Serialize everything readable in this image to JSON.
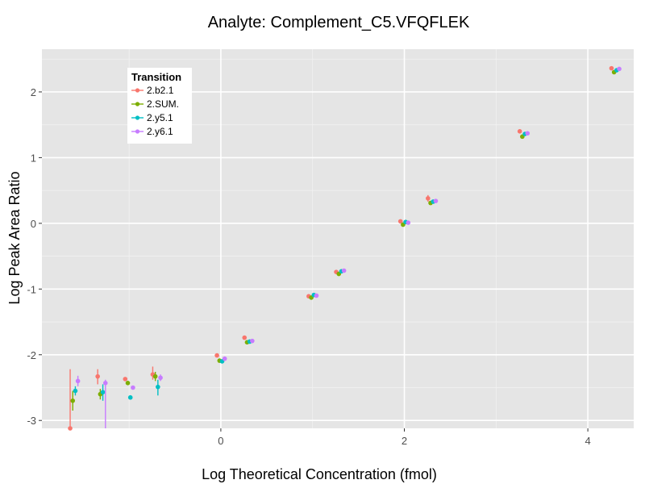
{
  "chart_data": {
    "type": "scatter",
    "title": "Analyte: Complement_C5.VFQFLEK",
    "xlabel": "Log Theoretical Concentration (fmol)",
    "ylabel": "Log Peak Area Ratio",
    "xlim": [
      -1.95,
      4.5
    ],
    "ylim": [
      -3.12,
      2.65
    ],
    "x_ticks": [
      0,
      2,
      4
    ],
    "y_ticks": [
      -3,
      -2,
      -1,
      0,
      1,
      2
    ],
    "grid": true,
    "legend": {
      "title": "Transition",
      "position": "top-left"
    },
    "series": [
      {
        "name": "2.b2.1",
        "color": "#F8766D",
        "points": [
          {
            "x": -1.6,
            "y": -3.12,
            "lo": -3.12,
            "hi": -2.22
          },
          {
            "x": -1.3,
            "y": -2.33,
            "lo": -2.45,
            "hi": -2.22
          },
          {
            "x": -1.0,
            "y": -2.37
          },
          {
            "x": -0.7,
            "y": -2.3,
            "lo": -2.38,
            "hi": -2.18
          },
          {
            "x": 0.0,
            "y": -2.01
          },
          {
            "x": 0.3,
            "y": -1.74
          },
          {
            "x": 1.0,
            "y": -1.11
          },
          {
            "x": 1.3,
            "y": -0.74
          },
          {
            "x": 2.0,
            "y": 0.03
          },
          {
            "x": 2.3,
            "y": 0.38,
            "lo": 0.33,
            "hi": 0.43
          },
          {
            "x": 3.3,
            "y": 1.4
          },
          {
            "x": 4.3,
            "y": 2.36
          }
        ]
      },
      {
        "name": "2.SUM.",
        "color": "#7CAE00",
        "points": [
          {
            "x": -1.6,
            "y": -2.7,
            "lo": -2.85,
            "hi": -2.55
          },
          {
            "x": -1.3,
            "y": -2.6,
            "lo": -2.68,
            "hi": -2.52
          },
          {
            "x": -1.0,
            "y": -2.43
          },
          {
            "x": -0.7,
            "y": -2.33,
            "lo": -2.4,
            "hi": -2.26
          },
          {
            "x": 0.0,
            "y": -2.09
          },
          {
            "x": 0.3,
            "y": -1.81
          },
          {
            "x": 1.0,
            "y": -1.13
          },
          {
            "x": 1.3,
            "y": -0.77
          },
          {
            "x": 2.0,
            "y": -0.02
          },
          {
            "x": 2.3,
            "y": 0.31
          },
          {
            "x": 3.3,
            "y": 1.32
          },
          {
            "x": 4.3,
            "y": 2.3
          }
        ]
      },
      {
        "name": "2.y5.1",
        "color": "#00BFC4",
        "points": [
          {
            "x": -1.6,
            "y": -2.55,
            "lo": -2.62,
            "hi": -2.48
          },
          {
            "x": -1.3,
            "y": -2.57,
            "lo": -2.7,
            "hi": -2.45
          },
          {
            "x": -1.0,
            "y": -2.65
          },
          {
            "x": -0.7,
            "y": -2.49,
            "lo": -2.62,
            "hi": -2.38
          },
          {
            "x": 0.0,
            "y": -2.1
          },
          {
            "x": 0.3,
            "y": -1.8
          },
          {
            "x": 1.0,
            "y": -1.09
          },
          {
            "x": 1.3,
            "y": -0.73
          },
          {
            "x": 2.0,
            "y": 0.02
          },
          {
            "x": 2.3,
            "y": 0.33
          },
          {
            "x": 3.3,
            "y": 1.36
          },
          {
            "x": 4.3,
            "y": 2.33
          }
        ]
      },
      {
        "name": "2.y6.1",
        "color": "#C77CFF",
        "points": [
          {
            "x": -1.6,
            "y": -2.4,
            "lo": -2.48,
            "hi": -2.32
          },
          {
            "x": -1.3,
            "y": -2.43,
            "lo": -3.12,
            "hi": -2.38
          },
          {
            "x": -1.0,
            "y": -2.5
          },
          {
            "x": -0.7,
            "y": -2.35,
            "lo": -2.4,
            "hi": -2.3
          },
          {
            "x": 0.0,
            "y": -2.06
          },
          {
            "x": 0.3,
            "y": -1.79
          },
          {
            "x": 1.0,
            "y": -1.1
          },
          {
            "x": 1.3,
            "y": -0.72
          },
          {
            "x": 2.0,
            "y": 0.01
          },
          {
            "x": 2.3,
            "y": 0.34
          },
          {
            "x": 3.3,
            "y": 1.37
          },
          {
            "x": 4.3,
            "y": 2.35
          }
        ]
      }
    ]
  }
}
